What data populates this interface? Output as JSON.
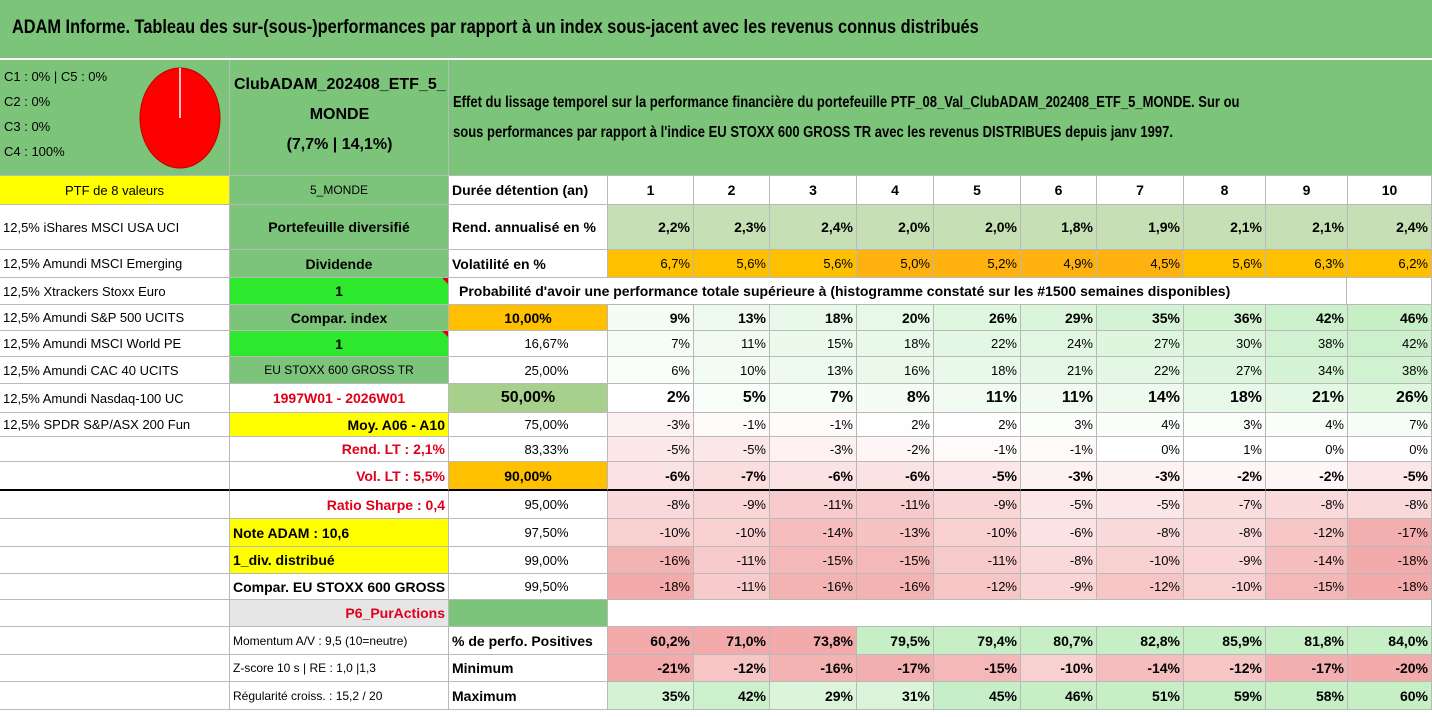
{
  "title": "ADAM Informe. Tableau des sur-(sous-)performances par rapport à un index sous-jacent avec les revenus connus distribués",
  "legend": [
    "C1 : 0% | C5 : 0%",
    "C2 : 0%",
    "C3 : 0%",
    "C4 : 100%"
  ],
  "pie_color": "#ff0000",
  "ptf": {
    "name_line1": "ClubADAM_202408_ETF_5_",
    "name_line2": "MONDE",
    "name_line3": "(7,7% | 14,1%)"
  },
  "description": {
    "line1": "Effet du lissage temporel sur la performance financière du portefeuille PTF_08_Val_ClubADAM_202408_ETF_5_MONDE. Sur ou",
    "line2": "sous performances par rapport à l'indice EU STOXX 600 GROSS TR avec les revenus DISTRIBUES depuis janv 1997."
  },
  "ptf_header": "PTF de 8 valeurs",
  "holdings": [
    "12,5% iShares MSCI USA UCI",
    "12,5% Amundi MSCI Emerging",
    "12,5% Xtrackers Stoxx Euro",
    "12,5% Amundi S&P 500 UCITS",
    "12,5% Amundi MSCI World PE",
    "12,5% Amundi CAC 40 UCITS",
    "12,5% Amundi Nasdaq-100 UC",
    "12,5% SPDR S&P/ASX 200 Fun"
  ],
  "info": {
    "category": "5_MONDE",
    "type": "Portefeuille diversifié",
    "dividend_label": "Dividende",
    "dividend_value": "1",
    "compar_label": "Compar. index",
    "compar_value": "1",
    "index_name": "EU STOXX 600 GROSS TR",
    "period": "1997W01 - 2026W01",
    "moy": "Moy. A06 - A10",
    "rend": "Rend. LT : 2,1%",
    "vol": "Vol. LT : 5,5%",
    "sharpe": "Ratio Sharpe : 0,4",
    "note": "Note ADAM : 10,6",
    "div": "1_div. distribué",
    "compar_full": "Compar. EU STOXX 600 GROSS TR",
    "p6": "P6_PurActions",
    "momentum": "Momentum A/V : 9,5 (10=neutre)",
    "zscore": "Z-score 10 s | RE : 1,0 |1,3",
    "regularite": "Régularité croiss. : 15,2 / 20"
  },
  "header_row": {
    "label": "Durée détention (an)",
    "years": [
      "1",
      "2",
      "3",
      "4",
      "5",
      "6",
      "7",
      "8",
      "9",
      "10"
    ]
  },
  "rend_row": {
    "label": "Rend. annualisé en %",
    "values": [
      "2,2%",
      "2,3%",
      "2,4%",
      "2,0%",
      "2,0%",
      "1,8%",
      "1,9%",
      "2,1%",
      "2,1%",
      "2,4%"
    ]
  },
  "vol_row": {
    "label": "Volatilité en %",
    "values": [
      "6,7%",
      "5,6%",
      "5,6%",
      "5,0%",
      "5,2%",
      "4,9%",
      "4,5%",
      "5,6%",
      "6,3%",
      "6,2%"
    ]
  },
  "proba_text": "Probabilité d'avoir une performance totale supérieure à (histogramme constaté sur les #1500 semaines disponibles)",
  "quantiles": [
    {
      "p": "10,00%",
      "values": [
        "9%",
        "13%",
        "18%",
        "20%",
        "26%",
        "29%",
        "35%",
        "36%",
        "42%",
        "46%"
      ]
    },
    {
      "p": "16,67%",
      "values": [
        "7%",
        "11%",
        "15%",
        "18%",
        "22%",
        "24%",
        "27%",
        "30%",
        "38%",
        "42%"
      ]
    },
    {
      "p": "25,00%",
      "values": [
        "6%",
        "10%",
        "13%",
        "16%",
        "18%",
        "21%",
        "22%",
        "27%",
        "34%",
        "38%"
      ]
    },
    {
      "p": "50,00%",
      "values": [
        "2%",
        "5%",
        "7%",
        "8%",
        "11%",
        "11%",
        "14%",
        "18%",
        "21%",
        "26%"
      ]
    },
    {
      "p": "75,00%",
      "values": [
        "-3%",
        "-1%",
        "-1%",
        "2%",
        "2%",
        "3%",
        "4%",
        "3%",
        "4%",
        "7%"
      ]
    },
    {
      "p": "83,33%",
      "values": [
        "-5%",
        "-5%",
        "-3%",
        "-2%",
        "-1%",
        "-1%",
        "0%",
        "1%",
        "0%",
        "0%"
      ]
    },
    {
      "p": "90,00%",
      "values": [
        "-6%",
        "-7%",
        "-6%",
        "-6%",
        "-5%",
        "-3%",
        "-3%",
        "-2%",
        "-2%",
        "-5%"
      ]
    },
    {
      "p": "95,00%",
      "values": [
        "-8%",
        "-9%",
        "-11%",
        "-11%",
        "-9%",
        "-5%",
        "-5%",
        "-7%",
        "-8%",
        "-8%"
      ]
    },
    {
      "p": "97,50%",
      "values": [
        "-10%",
        "-10%",
        "-14%",
        "-13%",
        "-10%",
        "-6%",
        "-8%",
        "-8%",
        "-12%",
        "-17%"
      ]
    },
    {
      "p": "99,00%",
      "values": [
        "-16%",
        "-11%",
        "-15%",
        "-15%",
        "-11%",
        "-8%",
        "-10%",
        "-9%",
        "-14%",
        "-18%"
      ]
    },
    {
      "p": "99,50%",
      "values": [
        "-18%",
        "-11%",
        "-16%",
        "-16%",
        "-12%",
        "-9%",
        "-12%",
        "-10%",
        "-15%",
        "-18%"
      ]
    }
  ],
  "stats": [
    {
      "label": "% de perfo. Positives",
      "values": [
        "60,2%",
        "71,0%",
        "73,8%",
        "79,5%",
        "79,4%",
        "80,7%",
        "82,8%",
        "85,9%",
        "81,8%",
        "84,0%"
      ]
    },
    {
      "label": "Minimum",
      "values": [
        "-21%",
        "-12%",
        "-16%",
        "-17%",
        "-15%",
        "-10%",
        "-14%",
        "-12%",
        "-17%",
        "-20%"
      ]
    },
    {
      "label": "Maximum",
      "values": [
        "35%",
        "42%",
        "29%",
        "31%",
        "45%",
        "46%",
        "51%",
        "59%",
        "58%",
        "60%"
      ]
    }
  ],
  "colors": {
    "banner": "#7dc47b",
    "yellow": "#ffff00",
    "orange": "#ffc000",
    "lime": "#2ee82e",
    "red_text": "#e0001b"
  }
}
